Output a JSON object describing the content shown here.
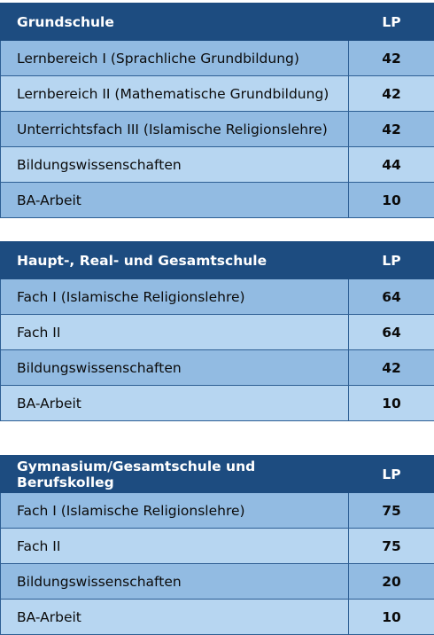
{
  "tables": [
    {
      "header": "Grundschule",
      "lp_header": "LP",
      "rows": [
        {
          "label": "Lernbereich I (Sprachliche Grundbildung)",
          "lp": "42"
        },
        {
          "label": "Lernbereich II (Mathematische Grundbildung)",
          "lp": "42"
        },
        {
          "label": "Unterrichtsfach III (Islamische Religionslehre)",
          "lp": "42"
        },
        {
          "label": "Bildungswissenschaften",
          "lp": "44"
        },
        {
          "label": "BA-Arbeit",
          "lp": "10"
        }
      ]
    },
    {
      "header": "Haupt-, Real- und Gesamtschule",
      "lp_header": "LP",
      "rows": [
        {
          "label": "Fach I (Islamische Religionslehre)",
          "lp": "64"
        },
        {
          "label": "Fach II",
          "lp": "64"
        },
        {
          "label": "Bildungswissenschaften",
          "lp": "42"
        },
        {
          "label": "BA-Arbeit",
          "lp": "10"
        }
      ]
    },
    {
      "header": "Gymnasium/Gesamtschule und Berufskolleg",
      "lp_header": "LP",
      "rows": [
        {
          "label": "Fach I (Islamische Religionslehre)",
          "lp": "75"
        },
        {
          "label": "Fach II",
          "lp": "75"
        },
        {
          "label": "Bildungswissenschaften",
          "lp": "20"
        },
        {
          "label": "BA-Arbeit",
          "lp": "10"
        }
      ]
    }
  ],
  "colors": {
    "header_bg": "#1d4c80",
    "row_dark": "#92bbe2",
    "row_light": "#b7d6f1",
    "border": "#2e5f94"
  }
}
